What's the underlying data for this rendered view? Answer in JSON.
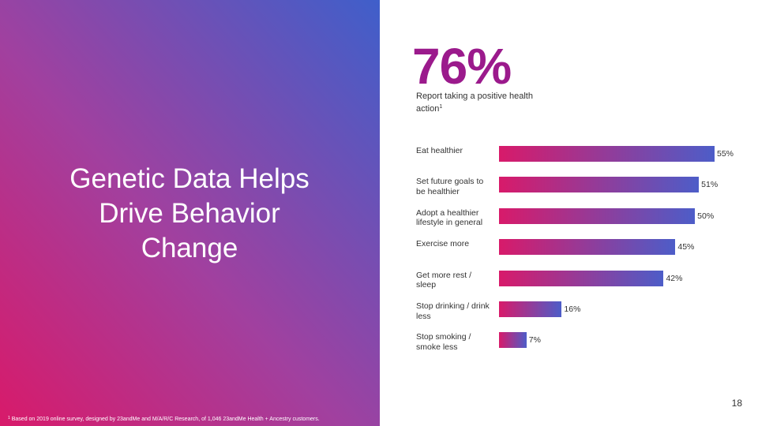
{
  "slide": {
    "title_lines": [
      "Genetic Data Helps",
      "Drive Behavior",
      "Change"
    ],
    "headline_stat": "76%",
    "headline_caption": "Report taking a positive health action",
    "headline_caption_marker": "1",
    "footnote_marker": "1",
    "footnote": "Based on 2019 online survey, designed by 23andMe and M/A/R/C Research, of 1,046 23andMe Health + Ancestry customers.",
    "page_number": "18"
  },
  "colors": {
    "headline": "#9b1a8c",
    "gradient_start": "#d81a6a",
    "gradient_end": "#3f5fca"
  },
  "chart_data": {
    "type": "bar",
    "orientation": "horizontal",
    "categories": [
      "Eat healthier",
      "Set future goals to be healthier",
      "Adopt a healthier lifestyle in general",
      "Exercise more",
      "Get more rest / sleep",
      "Stop drinking / drink less",
      "Stop smoking / smoke less"
    ],
    "values": [
      55,
      51,
      50,
      45,
      42,
      16,
      7
    ],
    "value_labels": [
      "55%",
      "51%",
      "50%",
      "45%",
      "42%",
      "16%",
      "7%"
    ],
    "grid": false
  }
}
